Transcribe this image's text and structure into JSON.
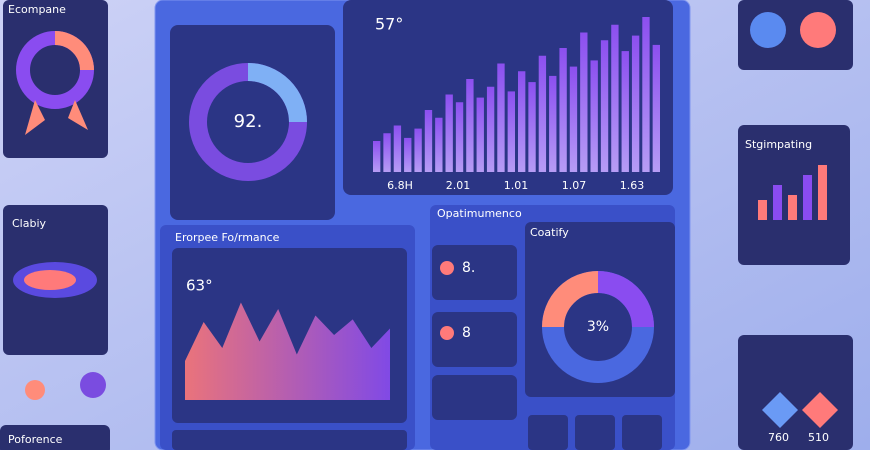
{
  "left": {
    "card1_title": "Ecompane",
    "card2_title": "Clabiy",
    "card3_title": "Poforence"
  },
  "gauge": {
    "value": "92."
  },
  "bars": {
    "title": "57°",
    "labels": [
      "6.8H",
      "2.01",
      "1.01",
      "1.07",
      "1.63"
    ],
    "values": [
      20,
      25,
      30,
      22,
      28,
      40,
      35,
      50,
      45,
      60,
      48,
      55,
      70,
      52,
      65,
      58,
      75,
      62,
      80,
      68,
      90,
      72,
      85,
      95,
      78,
      88,
      100,
      82
    ]
  },
  "performance": {
    "title": "Erorpee Fo/rmance",
    "value": "63°",
    "values": [
      30,
      60,
      40,
      75,
      45,
      70,
      35,
      65,
      50,
      62,
      40,
      55
    ]
  },
  "optimum": {
    "title": "Opatimumenco",
    "items": [
      "8.",
      "8"
    ],
    "donut_title": "Coatify",
    "donut_value": "3%"
  },
  "right": {
    "card_title": "Stgimpating",
    "small_bars": [
      20,
      35,
      25,
      45,
      55
    ],
    "numbers": [
      "760",
      "510"
    ]
  }
}
